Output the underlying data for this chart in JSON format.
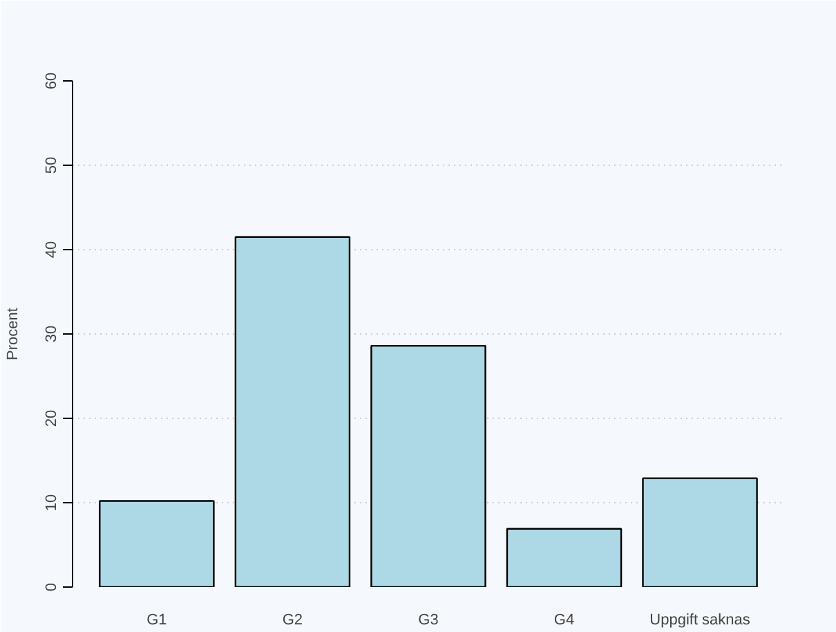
{
  "chart_data": {
    "type": "bar",
    "ylabel": "Procent",
    "categories": [
      "G1",
      "G2",
      "G3",
      "G4",
      "Uppgift saknas"
    ],
    "values": [
      10.2,
      41.5,
      28.6,
      6.9,
      12.9
    ],
    "color": "#add8e6",
    "ylim": [
      0,
      60
    ],
    "yticks": [
      0,
      10,
      20,
      30,
      40,
      50,
      60
    ],
    "grid": "y"
  }
}
